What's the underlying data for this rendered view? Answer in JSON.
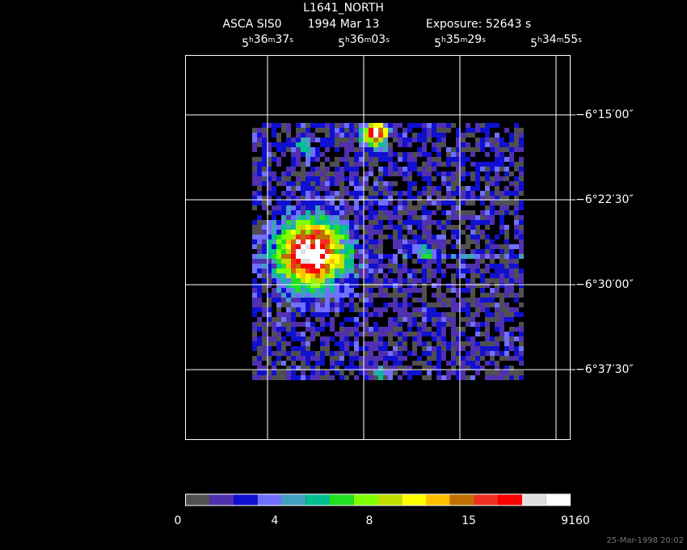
{
  "header": {
    "title": "L1641_NORTH",
    "instrument": "ASCA SIS0",
    "date": "1994 Mar 13",
    "exposure": "Exposure: 52643 s"
  },
  "ra_labels": [
    [
      "5",
      "h",
      "36",
      "m",
      "37",
      "s"
    ],
    [
      "5",
      "h",
      "36",
      "m",
      "03",
      "s"
    ],
    [
      "5",
      "h",
      "35",
      "m",
      "29",
      "s"
    ],
    [
      "5",
      "h",
      "34",
      "m",
      "55",
      "s"
    ]
  ],
  "dec_labels": [
    "−6°15′00″",
    "−6°22′30″",
    "−6°30′00″",
    "−6°37′30″"
  ],
  "colorbar": {
    "colors": [
      "#505050",
      "#5030b0",
      "#1010d0",
      "#7070ff",
      "#40a0c0",
      "#00c090",
      "#20e020",
      "#80ff00",
      "#c0e000",
      "#ffff00",
      "#ffc000",
      "#c07000",
      "#f03020",
      "#ff0000",
      "#e0e0e0",
      "#ffffff"
    ],
    "labels": [
      "0",
      "4",
      "8",
      "15",
      "9160"
    ]
  },
  "footer": {
    "timestamp": "25-Mar-1998 20:02"
  }
}
